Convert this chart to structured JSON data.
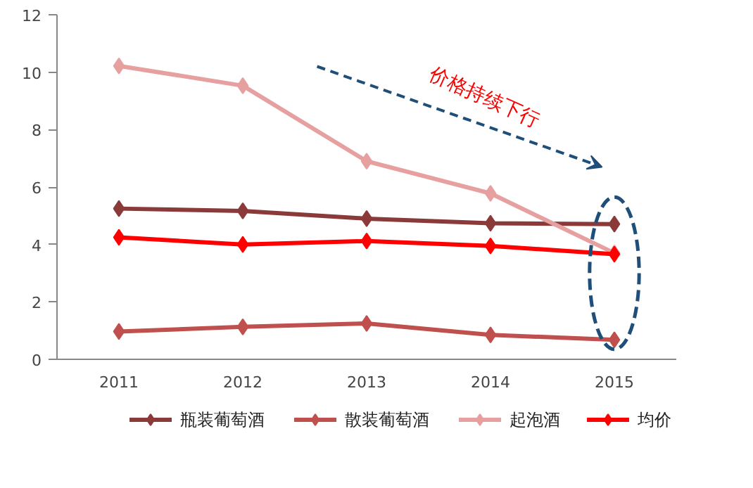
{
  "chart_data": {
    "type": "line",
    "categories": [
      "2011",
      "2012",
      "2013",
      "2014",
      "2015"
    ],
    "series": [
      {
        "name": "瓶装葡萄酒",
        "color": "#8b3a3a",
        "values": [
          5.25,
          5.17,
          4.9,
          4.74,
          4.71
        ]
      },
      {
        "name": "散装葡萄酒",
        "color": "#c0504d",
        "values": [
          0.97,
          1.13,
          1.25,
          0.85,
          0.68
        ]
      },
      {
        "name": "起泡酒",
        "color": "#e6a0a0",
        "values": [
          10.22,
          9.53,
          6.9,
          5.78,
          3.7
        ]
      },
      {
        "name": "均价",
        "color": "#ff0000",
        "values": [
          4.25,
          4.0,
          4.12,
          3.95,
          3.66
        ]
      }
    ],
    "ylim": [
      0,
      12
    ],
    "yticks": [
      0,
      2,
      4,
      6,
      8,
      10,
      12
    ],
    "grid": false,
    "legend": "bottom",
    "marker": "diamond",
    "line_style": "solid",
    "annotations": [
      "价格持续下行"
    ]
  }
}
